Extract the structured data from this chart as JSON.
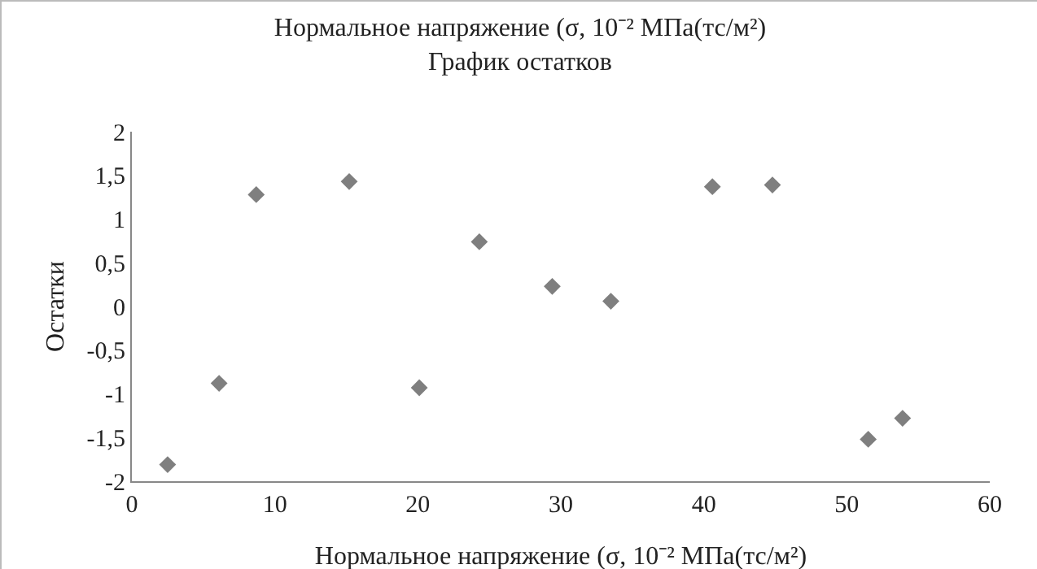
{
  "chart_data": {
    "type": "scatter",
    "title": "Нормальное напряжение (σ, 10⁻² МПа(тс/м²)",
    "subtitle": "График остатков",
    "xlabel": "Нормальное напряжение (σ, 10⁻² МПа(тс/м²)",
    "ylabel": "Остатки",
    "x": [
      2.5,
      6.1,
      8.7,
      15.2,
      20.1,
      24.3,
      29.4,
      33.5,
      40.6,
      44.8,
      51.5,
      53.9
    ],
    "series": [
      {
        "color": "#7f7f7f",
        "values": [
          -1.81,
          -0.88,
          1.28,
          1.43,
          -0.93,
          0.74,
          0.23,
          0.06,
          1.37,
          1.39,
          -1.52,
          -1.28
        ]
      }
    ],
    "xlim": [
      0,
      60
    ],
    "xticks": [
      0,
      10,
      20,
      30,
      40,
      50,
      60
    ],
    "ylim": [
      -2,
      2
    ],
    "yticks": [
      {
        "value": -2,
        "label": "-2"
      },
      {
        "value": -1.5,
        "label": "-1,5"
      },
      {
        "value": -1,
        "label": "-1"
      },
      {
        "value": -0.5,
        "label": "-0,5"
      },
      0,
      {
        "value": 0.5,
        "label": "0,5"
      },
      1,
      {
        "value": 1.5,
        "label": "1,5"
      },
      2
    ],
    "grid": false,
    "marker": "diamond"
  }
}
